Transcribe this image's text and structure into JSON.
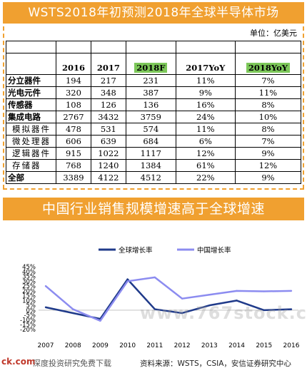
{
  "banner_top": "WSTS2018年初预测2018年全球半导体市场",
  "unit": "单位：亿美元",
  "table": {
    "columns": [
      "",
      "2016",
      "2017",
      "2018F",
      "2017YoY",
      "2018YoY"
    ],
    "rows": [
      {
        "label": "分立器件",
        "sub": false,
        "cells": [
          "194",
          "217",
          "231",
          "11%",
          "7%"
        ]
      },
      {
        "label": "光电元件",
        "sub": false,
        "cells": [
          "320",
          "348",
          "387",
          "9%",
          "11%"
        ]
      },
      {
        "label": "传感器",
        "sub": false,
        "cells": [
          "108",
          "126",
          "136",
          "16%",
          "8%"
        ]
      },
      {
        "label": "集成电路",
        "sub": false,
        "cells": [
          "2767",
          "3432",
          "3759",
          "24%",
          "10%"
        ]
      },
      {
        "label": "模拟器件",
        "sub": true,
        "cells": [
          "478",
          "531",
          "574",
          "11%",
          "8%"
        ]
      },
      {
        "label": "微处理器",
        "sub": true,
        "cells": [
          "606",
          "639",
          "684",
          "6%",
          "7%"
        ]
      },
      {
        "label": "逻辑器件",
        "sub": true,
        "cells": [
          "915",
          "1022",
          "1117",
          "12%",
          "9%"
        ]
      },
      {
        "label": "存储器",
        "sub": true,
        "cells": [
          "768",
          "1240",
          "1384",
          "61%",
          "12%"
        ]
      },
      {
        "label": "全部",
        "sub": false,
        "cells": [
          "3389",
          "4122",
          "4512",
          "22%",
          "9%"
        ]
      }
    ]
  },
  "banner_mid": "中国行业销售规模增速高于全球增速",
  "chart_data": {
    "type": "line",
    "x": [
      "2007",
      "2008",
      "2009",
      "2010",
      "2011",
      "2012",
      "2013",
      "2014",
      "2015",
      "2016"
    ],
    "ylim": [
      -20,
      45
    ],
    "yticks": [
      -20,
      -15,
      -10,
      -5,
      0,
      5,
      10,
      15,
      20,
      25,
      30,
      35,
      40,
      45
    ],
    "ytick_labels": [
      "-20%",
      "-15%",
      "-10%",
      "-5%",
      "0%",
      "5%",
      "10%",
      "15%",
      "20%",
      "25%",
      "30%",
      "35%",
      "40%",
      "45%"
    ],
    "legend_position": "top",
    "series": [
      {
        "name": "全球增长率",
        "color": "#1f3a8a",
        "values": [
          3,
          -3,
          -9,
          32,
          1,
          -3,
          5,
          10,
          0,
          1
        ]
      },
      {
        "name": "中国增长率",
        "color": "#8c8cf0",
        "values": [
          25,
          1,
          -11,
          30,
          34,
          12,
          16,
          20,
          19.5,
          20
        ]
      }
    ]
  },
  "footer": {
    "left": "ck.com",
    "left2": "深度投资研究免费下载",
    "right": "资料来源：WSTS，CSIA，安信证券研究中心",
    "watermark": "www.767stock.com"
  }
}
